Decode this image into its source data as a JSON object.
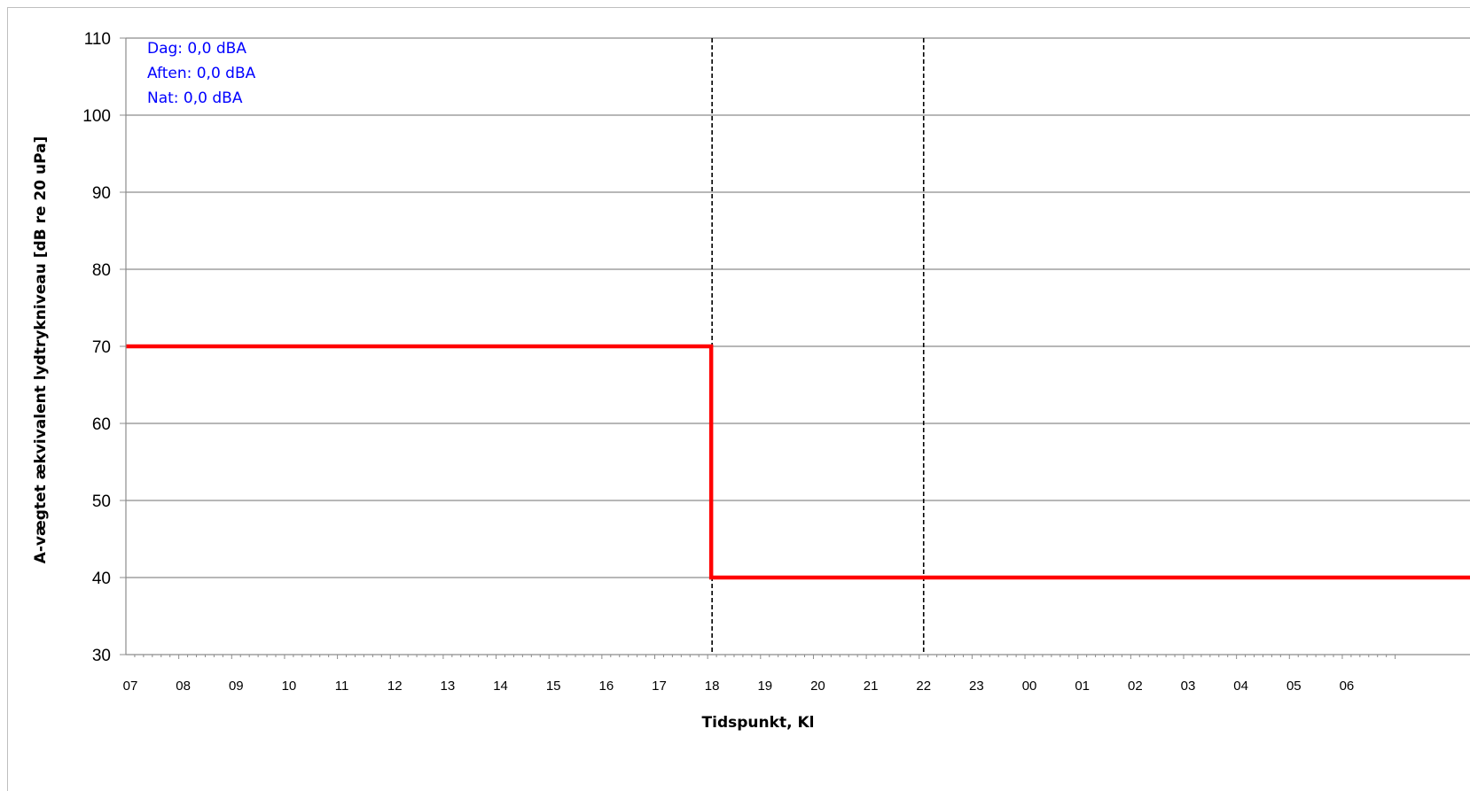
{
  "chart_data": {
    "type": "line",
    "title": "",
    "xlabel": "Tidspunkt, Kl",
    "ylabel": "A-vægtet ækvivalent lydtrykniveau [dB re 20 uPa]",
    "ylim": [
      30,
      110
    ],
    "yticks": [
      30,
      40,
      50,
      60,
      70,
      80,
      90,
      100,
      110
    ],
    "categories": [
      "07",
      "08",
      "09",
      "10",
      "11",
      "12",
      "13",
      "14",
      "15",
      "16",
      "17",
      "18",
      "19",
      "20",
      "21",
      "22",
      "23",
      "00",
      "01",
      "02",
      "03",
      "04",
      "05",
      "06"
    ],
    "grid": true,
    "legend": "none",
    "series": [
      {
        "color": "#ff0000",
        "points": [
          [
            0,
            70
          ],
          [
            11,
            70
          ],
          [
            11,
            40
          ],
          [
            24,
            40
          ]
        ]
      }
    ],
    "vlines": [
      {
        "at": "18",
        "style": "dashed",
        "color": "#000000"
      },
      {
        "at": "22",
        "style": "dashed",
        "color": "#000000"
      }
    ],
    "annotations": [
      "Dag: 0,0 dBA",
      "Aften: 0,0 dBA",
      "Nat: 0,0 dBA"
    ],
    "annotation_color": "#0000ff"
  }
}
